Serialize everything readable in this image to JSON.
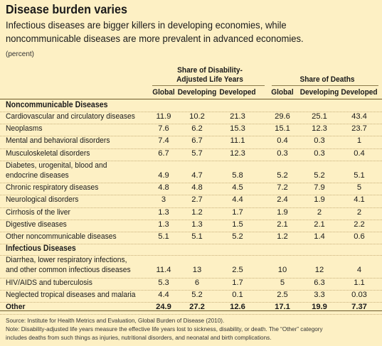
{
  "title": "Disease burden varies",
  "subtitle": [
    "Infectious diseases are bigger killers in developing economies, while",
    "noncommunicable diseases are more prevalent in advanced economies."
  ],
  "unit": "(percent)",
  "groups": {
    "dalys": [
      "Share of Disability-",
      "Adjusted Life Years"
    ],
    "deaths": "Share of Deaths"
  },
  "columns": [
    "Global",
    "Developing",
    "Developed",
    "Global",
    "Developing",
    "Developed"
  ],
  "sections": [
    {
      "name": "Noncommunicable Diseases",
      "rows": [
        {
          "label": [
            "Cardiovascular and  circulatory diseases"
          ],
          "values": [
            "11.9",
            "10.2",
            "21.3",
            "29.6",
            "25.1",
            "43.4"
          ]
        },
        {
          "label": [
            "Neoplasms"
          ],
          "values": [
            "7.6",
            "6.2",
            "15.3",
            "15.1",
            "12.3",
            "23.7"
          ]
        },
        {
          "label": [
            "Mental and behavioral disorders"
          ],
          "values": [
            "7.4",
            "6.7",
            "11.1",
            "0.4",
            "0.3",
            "1"
          ]
        },
        {
          "label": [
            "Musculoskeletal disorders"
          ],
          "values": [
            "6.7",
            "5.7",
            "12.3",
            "0.3",
            "0.3",
            "0.4"
          ]
        },
        {
          "label": [
            "Diabetes, urogenital, blood and",
            "endocrine diseases"
          ],
          "values": [
            "4.9",
            "4.7",
            "5.8",
            "5.2",
            "5.2",
            "5.1"
          ]
        },
        {
          "label": [
            "Chronic respiratory diseases"
          ],
          "values": [
            "4.8",
            "4.8",
            "4.5",
            "7.2",
            "7.9",
            "5"
          ]
        },
        {
          "label": [
            "Neurological disorders"
          ],
          "values": [
            "3",
            "2.7",
            "4.4",
            "2.4",
            "1.9",
            "4.1"
          ]
        },
        {
          "label": [
            "Cirrhosis of the liver"
          ],
          "values": [
            "1.3",
            "1.2",
            "1.7",
            "1.9",
            "2",
            "2"
          ]
        },
        {
          "label": [
            "Digestive diseases"
          ],
          "values": [
            "1.3",
            "1.3",
            "1.5",
            "2.1",
            "2.1",
            "2.2"
          ]
        },
        {
          "label": [
            "Other noncommunicable diseases"
          ],
          "values": [
            "5.1",
            "5.1",
            "5.2",
            "1.2",
            "1.4",
            "0.6"
          ]
        }
      ]
    },
    {
      "name": "Infectious Diseases",
      "rows": [
        {
          "label": [
            "Diarrhea, lower respiratory infections,",
            "and other common infectious diseases"
          ],
          "values": [
            "11.4",
            "13",
            "2.5",
            "10",
            "12",
            "4"
          ]
        },
        {
          "label": [
            "HIV/AIDS and tuberculosis"
          ],
          "values": [
            "5.3",
            "6",
            "1.7",
            "5",
            "6.3",
            "1.1"
          ]
        },
        {
          "label": [
            "Neglected tropical diseases and malaria"
          ],
          "values": [
            "4.4",
            "5.2",
            "0.1",
            "2.5",
            "3.3",
            "0.03"
          ]
        }
      ]
    }
  ],
  "other": {
    "label": "Other",
    "values": [
      "24.9",
      "27.2",
      "12.6",
      "17.1",
      "19.9",
      "7.37"
    ]
  },
  "footer": {
    "source": "Source: Institute for Health Metrics and Evaluation, Global Burden of Disease (2010).",
    "note": [
      "Note: Disability-adjusted life years measure the effective life years lost to sickness, disability, or death. The “Other” category",
      "includes deaths from such things as injuries, nutritional disorders, and neonatal and birth complications."
    ]
  }
}
